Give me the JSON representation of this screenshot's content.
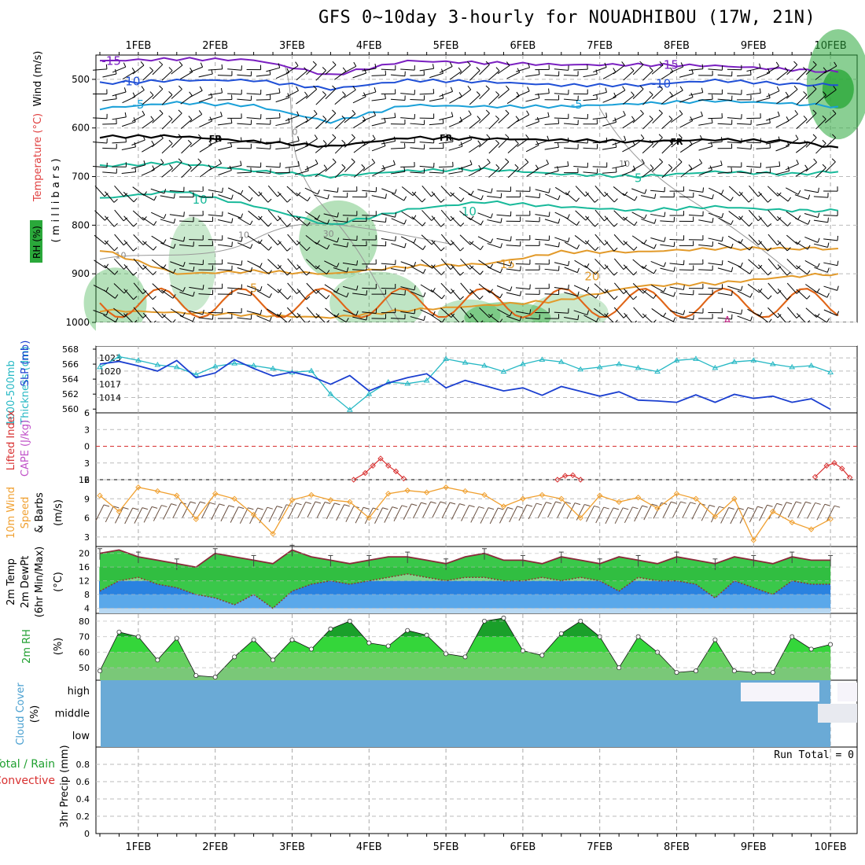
{
  "title": "GFS 0~10day 3-hourly for NOUADHIBOU (17W, 21N)",
  "colors": {
    "rh_green": "#2aa83a",
    "t_purple": "#7a1fc0",
    "t_blue": "#1f4fd6",
    "t_cyan": "#1aa0d8",
    "t_teal": "#18b99a",
    "t_orange": "#e29a2a",
    "t_darkorange": "#e0641a",
    "slp": "#1b3fd0",
    "thick": "#26b8c4",
    "cape_red": "#d83030",
    "wind_orange": "#f0a030",
    "temp_green": "#3ac84a",
    "dew_blue": "#2a8ae8",
    "cloud": "#6aaad6"
  },
  "x_axis": {
    "labels": [
      "1FEB",
      "2FEB",
      "3FEB",
      "4FEB",
      "5FEB",
      "6FEB",
      "7FEB",
      "8FEB",
      "9FEB",
      "10FEB"
    ],
    "index_of_label": [
      0.5,
      1.5,
      2.5,
      3.5,
      4.5,
      5.5,
      6.5,
      7.5,
      8.5,
      9.5
    ]
  },
  "labels": {
    "p1_wind": "Wind (m/s)",
    "p1_temp": "Temperature (°C)",
    "p1_rh": "RH (%)",
    "p1_mb": "( m i l l i b a r s )",
    "p2_thick": "1000-500mb",
    "p2_thick2": "Thickness (dm)",
    "p2_slp": "SLP (mb)",
    "p3_li": "Lifted Index",
    "p3_cape": "CAPE (J/kg)",
    "p4_a": "10m Wind",
    "p4_b": "Speed",
    "p4_c": "& Barbs",
    "p4_unit": "(m/s)",
    "p5_a": "2m Temp",
    "p5_b": "2m DewPt",
    "p5_c": "(6hr Min/Max)",
    "p5_unit": "(°C)",
    "p6_a": "2m RH",
    "p6_unit": "(%)",
    "p7_a": "Cloud Cover",
    "p7_unit": "(%)",
    "p8_a": "Total / Rain",
    "p8_b": "Convective",
    "p8_c": "3hr Precip (mm)",
    "run_total": "Run Total = 0"
  },
  "chart_data": [
    {
      "type": "line",
      "name": "pressure-level temperature contours",
      "y_axis": {
        "label": "(millibars)",
        "ticks": [
          500,
          600,
          700,
          800,
          900,
          1000
        ],
        "ylim": [
          450,
          1000
        ]
      },
      "series": [
        {
          "name": "-15",
          "color": "#7a1fc0",
          "x": [
            0,
            1,
            2,
            3,
            4,
            5,
            6,
            7,
            8,
            9,
            9.6
          ],
          "values": [
            462,
            458,
            460,
            492,
            462,
            466,
            470,
            470,
            472,
            480,
            485
          ]
        },
        {
          "name": "-10",
          "color": "#1f4fd6",
          "x": [
            0,
            1,
            2,
            3,
            4,
            5,
            6,
            7,
            8,
            9,
            9.6
          ],
          "values": [
            508,
            502,
            502,
            520,
            502,
            505,
            512,
            512,
            502,
            510,
            512
          ]
        },
        {
          "name": "-5",
          "color": "#1aa0d8",
          "x": [
            0,
            1,
            2,
            3,
            4,
            5,
            6,
            7,
            8,
            9,
            9.6
          ],
          "values": [
            560,
            548,
            554,
            588,
            553,
            556,
            556,
            550,
            544,
            550,
            556
          ]
        },
        {
          "name": "FR",
          "color": "#000000",
          "x": [
            0,
            1,
            2,
            3,
            4,
            5,
            6,
            7,
            8,
            9,
            9.6
          ],
          "values": [
            618,
            617,
            628,
            638,
            620,
            622,
            625,
            628,
            624,
            628,
            640
          ]
        },
        {
          "name": "5",
          "color": "#18b99a",
          "x": [
            0,
            1,
            2,
            3,
            4,
            5,
            6,
            7,
            8,
            9,
            9.6
          ],
          "values": [
            678,
            672,
            688,
            700,
            688,
            685,
            695,
            700,
            690,
            695,
            690
          ]
        },
        {
          "name": "10",
          "color": "#18b99a",
          "x": [
            0,
            1,
            2,
            3,
            4,
            5,
            6,
            7,
            8,
            9,
            9.6
          ],
          "values": [
            745,
            730,
            760,
            800,
            768,
            752,
            762,
            770,
            762,
            770,
            770
          ]
        },
        {
          "name": "15",
          "color": "#e29a2a",
          "x": [
            0,
            1,
            2,
            3,
            4,
            5,
            6,
            7,
            8,
            9,
            9.6
          ],
          "values": [
            850,
            900,
            895,
            900,
            885,
            880,
            855,
            855,
            848,
            848,
            848
          ]
        },
        {
          "name": "20",
          "color": "#e29a2a",
          "x": [
            0,
            1,
            2,
            3,
            4,
            5,
            6,
            7,
            8,
            9,
            9.6
          ],
          "values": [
            975,
            980,
            985,
            990,
            975,
            965,
            955,
            925,
            920,
            905,
            900
          ]
        }
      ],
      "contour_labels": [
        {
          "text": "-15",
          "x": 0.15,
          "y": 462
        },
        {
          "text": "-15",
          "x": 7.4,
          "y": 470
        },
        {
          "text": "-10",
          "x": 0.4,
          "y": 504
        },
        {
          "text": "-10",
          "x": 7.3,
          "y": 509
        },
        {
          "text": "-5",
          "x": 0.5,
          "y": 552
        },
        {
          "text": "-5",
          "x": 6.2,
          "y": 552
        },
        {
          "text": "FR",
          "x": 1.5,
          "y": 620
        },
        {
          "text": "FR",
          "x": 4.5,
          "y": 618
        },
        {
          "text": "FR",
          "x": 7.5,
          "y": 626
        },
        {
          "text": "5",
          "x": 7.0,
          "y": 703
        },
        {
          "text": "10",
          "x": 1.3,
          "y": 748
        },
        {
          "text": "10",
          "x": 4.8,
          "y": 772
        },
        {
          "text": "15",
          "x": 5.3,
          "y": 880
        },
        {
          "text": "20",
          "x": 6.4,
          "y": 905
        },
        {
          "text": "5",
          "x": 2.0,
          "y": 930
        }
      ],
      "rh_labels": [
        {
          "text": "10",
          "x": 0.2,
          "y": 868
        },
        {
          "text": "10",
          "x": 1.8,
          "y": 826
        },
        {
          "text": "30",
          "x": 2.9,
          "y": 824
        },
        {
          "text": "10",
          "x": 6.75,
          "y": 680
        },
        {
          "text": "0",
          "x": 2.5,
          "y": 614
        }
      ]
    },
    {
      "type": "line",
      "name": "Thickness and SLP",
      "x": [
        0,
        0.25,
        0.5,
        0.75,
        1,
        1.25,
        1.5,
        1.75,
        2,
        2.25,
        2.5,
        2.75,
        3,
        3.25,
        3.5,
        3.75,
        4,
        4.25,
        4.5,
        4.75,
        5,
        5.25,
        5.5,
        5.75,
        6,
        6.25,
        6.5,
        6.75,
        7,
        7.25,
        7.5,
        7.75,
        8,
        8.25,
        8.5,
        8.75,
        9,
        9.25,
        9.5
      ],
      "series": [
        {
          "name": "1000-500mb Thickness (dm)",
          "color": "#26b8c4",
          "axis": "left",
          "ylim": [
            559.5,
            568
          ],
          "values": [
            565.6,
            567.0,
            566.5,
            565.9,
            565.6,
            564.6,
            565.7,
            566.1,
            565.8,
            565.4,
            564.9,
            565.1,
            562.0,
            559.9,
            562.0,
            563.6,
            563.4,
            563.8,
            566.7,
            566.2,
            565.8,
            565.0,
            566.0,
            566.6,
            566.3,
            565.3,
            565.6,
            566.0,
            565.5,
            565.0,
            566.5,
            566.7,
            565.5,
            566.3,
            566.5,
            566.0,
            565.6,
            565.8,
            564.9
          ]
        },
        {
          "name": "SLP (mb)",
          "color": "#1b3fd0",
          "axis": "right",
          "ylim": [
            1010.5,
            1025
          ],
          "values": [
            1021.6,
            1022.2,
            1021.2,
            1020.0,
            1022.4,
            1018.5,
            1019.6,
            1022.6,
            1020.6,
            1018.9,
            1019.8,
            1018.8,
            1017.0,
            1019.0,
            1015.5,
            1017.3,
            1018.5,
            1019.4,
            1016.2,
            1017.9,
            1016.7,
            1015.5,
            1016.2,
            1014.5,
            1016.5,
            1015.4,
            1014.3,
            1015.3,
            1013.4,
            1013.2,
            1012.9,
            1014.6,
            1012.9,
            1014.7,
            1013.8,
            1014.3,
            1012.9,
            1013.7,
            1011.3
          ]
        }
      ],
      "yticks_left": [
        560,
        562,
        564,
        566,
        568
      ],
      "yticks_right": [
        1014,
        1017,
        1020,
        1023
      ]
    },
    {
      "type": "line",
      "name": "Lifted Index / CAPE",
      "y_axis": {
        "ticks": [
          -6,
          -3,
          0,
          3,
          6
        ],
        "ylim": [
          -6,
          6
        ],
        "inverted": true
      },
      "series": [
        {
          "name": "Lifted Index",
          "color": "#d83030",
          "x": [
            3.3,
            3.45,
            3.55,
            3.65,
            3.75,
            3.85,
            3.95
          ],
          "values": [
            6,
            4.8,
            3.5,
            2.2,
            3.5,
            4.5,
            5.8
          ]
        },
        {
          "name": "Lifted Index",
          "color": "#d83030",
          "x": [
            5.95,
            6.05,
            6.15,
            6.25
          ],
          "values": [
            6,
            5.3,
            5.2,
            6
          ]
        },
        {
          "name": "Lifted Index",
          "color": "#d83030",
          "x": [
            9.3,
            9.45,
            9.55,
            9.65,
            9.75
          ],
          "values": [
            5.5,
            3.5,
            3.0,
            4.0,
            5.6
          ]
        }
      ]
    },
    {
      "type": "line",
      "name": "10m Wind Speed",
      "y_axis": {
        "ticks": [
          3,
          6,
          9,
          12
        ],
        "ylim": [
          1.5,
          12
        ]
      },
      "x": [
        0,
        0.25,
        0.5,
        0.75,
        1,
        1.25,
        1.5,
        1.75,
        2,
        2.25,
        2.5,
        2.75,
        3,
        3.25,
        3.5,
        3.75,
        4,
        4.25,
        4.5,
        4.75,
        5,
        5.25,
        5.5,
        5.75,
        6,
        6.25,
        6.5,
        6.75,
        7,
        7.25,
        7.5,
        7.75,
        8,
        8.25,
        8.5,
        8.75,
        9,
        9.25,
        9.5
      ],
      "series": [
        {
          "name": "10m Wind Speed",
          "color": "#f0a030",
          "values": [
            9.5,
            7.0,
            10.8,
            10.2,
            9.5,
            5.8,
            9.8,
            9.0,
            6.5,
            3.5,
            8.8,
            9.6,
            8.8,
            8.5,
            6.0,
            9.8,
            10.3,
            10.0,
            10.8,
            10.2,
            9.6,
            7.8,
            9.0,
            9.6,
            9.0,
            6.0,
            9.5,
            8.5,
            9.2,
            7.5,
            9.8,
            9.0,
            6.2,
            9.0,
            2.5,
            7.0,
            5.3,
            4.2,
            5.8
          ]
        }
      ]
    },
    {
      "type": "area",
      "name": "2m Temp / DewPt",
      "y_axis": {
        "ticks": [
          4,
          8,
          12,
          16,
          20
        ],
        "ylim": [
          2.5,
          22
        ]
      },
      "x": [
        0,
        0.25,
        0.5,
        0.75,
        1,
        1.25,
        1.5,
        1.75,
        2,
        2.25,
        2.5,
        2.75,
        3,
        3.25,
        3.5,
        3.75,
        4,
        4.25,
        4.5,
        4.75,
        5,
        5.25,
        5.5,
        5.75,
        6,
        6.25,
        6.5,
        6.75,
        7,
        7.25,
        7.5,
        7.75,
        8,
        8.25,
        8.5,
        8.75,
        9,
        9.25,
        9.5
      ],
      "series": [
        {
          "name": "2m Temp",
          "color": "#3ac84a",
          "values": [
            20,
            21,
            19,
            18,
            17,
            16,
            20,
            19,
            18,
            17,
            21,
            19,
            18,
            17,
            18,
            19,
            19,
            18,
            17,
            19,
            20,
            18,
            18,
            17,
            19,
            18,
            17,
            19,
            18,
            17,
            19,
            18,
            17,
            19,
            18,
            17,
            19,
            18,
            18
          ]
        },
        {
          "name": "2m DewPt",
          "color": "#2a8ae8",
          "values": [
            9,
            12,
            13,
            11,
            10,
            8,
            7,
            5,
            8,
            4,
            9,
            11,
            12,
            11,
            12,
            13,
            14,
            13,
            12,
            13,
            13,
            12,
            12,
            13,
            12,
            13,
            12,
            9,
            13,
            12,
            12,
            11,
            7,
            12,
            10,
            8,
            12,
            11,
            11
          ]
        }
      ]
    },
    {
      "type": "area",
      "name": "2m RH",
      "y_axis": {
        "ticks": [
          50,
          60,
          70,
          80
        ],
        "ylim": [
          42,
          85
        ]
      },
      "x": [
        0,
        0.25,
        0.5,
        0.75,
        1,
        1.25,
        1.5,
        1.75,
        2,
        2.25,
        2.5,
        2.75,
        3,
        3.25,
        3.5,
        3.75,
        4,
        4.25,
        4.5,
        4.75,
        5,
        5.25,
        5.5,
        5.75,
        6,
        6.25,
        6.5,
        6.75,
        7,
        7.25,
        7.5,
        7.75,
        8,
        8.25,
        8.5,
        8.75,
        9,
        9.25,
        9.5
      ],
      "series": [
        {
          "name": "2m RH",
          "color": "#2aa83a",
          "values": [
            48,
            73,
            70,
            55,
            69,
            45,
            44,
            57,
            68,
            55,
            68,
            62,
            75,
            80,
            66,
            64,
            74,
            71,
            59,
            57,
            80,
            82,
            61,
            58,
            72,
            80,
            70,
            50,
            70,
            60,
            47,
            48,
            68,
            48,
            47,
            47,
            70,
            62,
            65
          ]
        }
      ]
    },
    {
      "type": "heatmap",
      "name": "Cloud Cover",
      "y_categories": [
        "high",
        "middle",
        "low"
      ],
      "note": "clear (white) patches in high and middle layers near 9FEB-10FEB"
    },
    {
      "type": "bar",
      "name": "3hr Precip (mm)",
      "y_axis": {
        "ticks": [
          0,
          0.2,
          0.4,
          0.6,
          0.8
        ],
        "ylim": [
          0,
          1
        ]
      },
      "values": []
    }
  ]
}
